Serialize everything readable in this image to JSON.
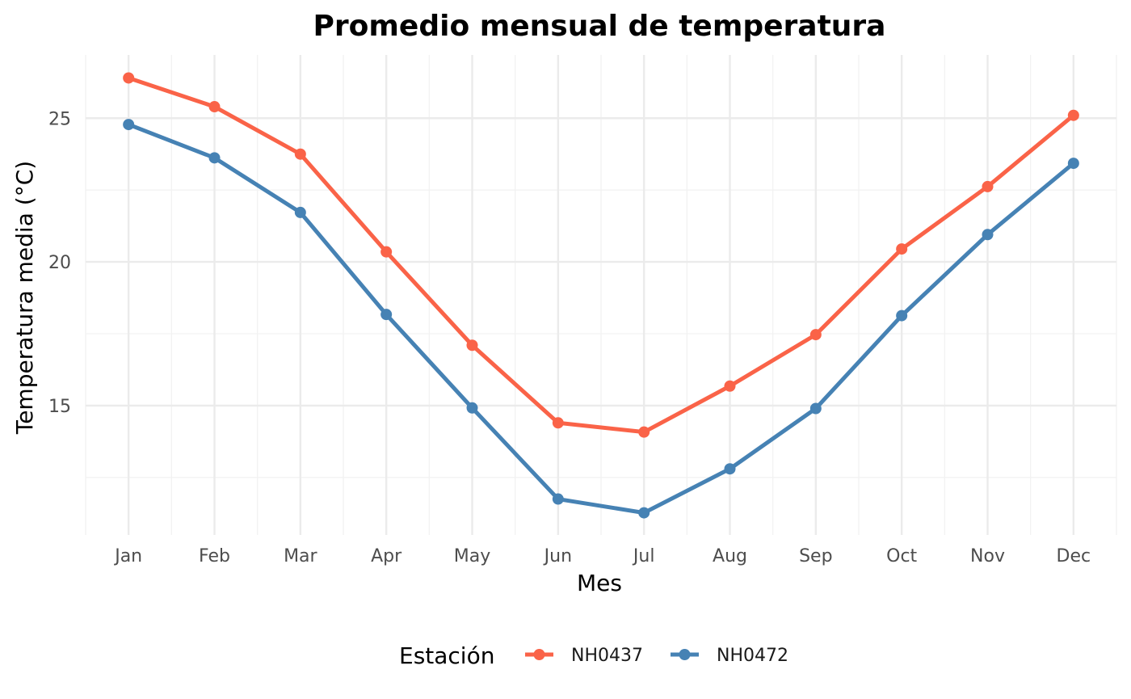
{
  "chart_data": {
    "type": "line",
    "title": "Promedio mensual de temperatura",
    "xlabel": "Mes",
    "ylabel": "Temperatura media (°C)",
    "categories": [
      "Jan",
      "Feb",
      "Mar",
      "Apr",
      "May",
      "Jun",
      "Jul",
      "Aug",
      "Sep",
      "Oct",
      "Nov",
      "Dec"
    ],
    "ylim": [
      10.5,
      27.2
    ],
    "yticks": [
      15,
      20,
      25
    ],
    "grid": true,
    "legend": {
      "title": "Estación",
      "placement": "bottom"
    },
    "series": [
      {
        "name": "NH0437",
        "color": "#FA6348",
        "values": [
          26.4,
          25.4,
          23.75,
          20.35,
          17.1,
          14.4,
          14.08,
          15.68,
          17.47,
          20.45,
          22.62,
          25.1
        ]
      },
      {
        "name": "NH0472",
        "color": "#4682B4",
        "values": [
          24.78,
          23.62,
          21.72,
          18.17,
          14.92,
          11.75,
          11.27,
          12.8,
          14.9,
          18.13,
          20.95,
          23.43
        ]
      }
    ]
  }
}
